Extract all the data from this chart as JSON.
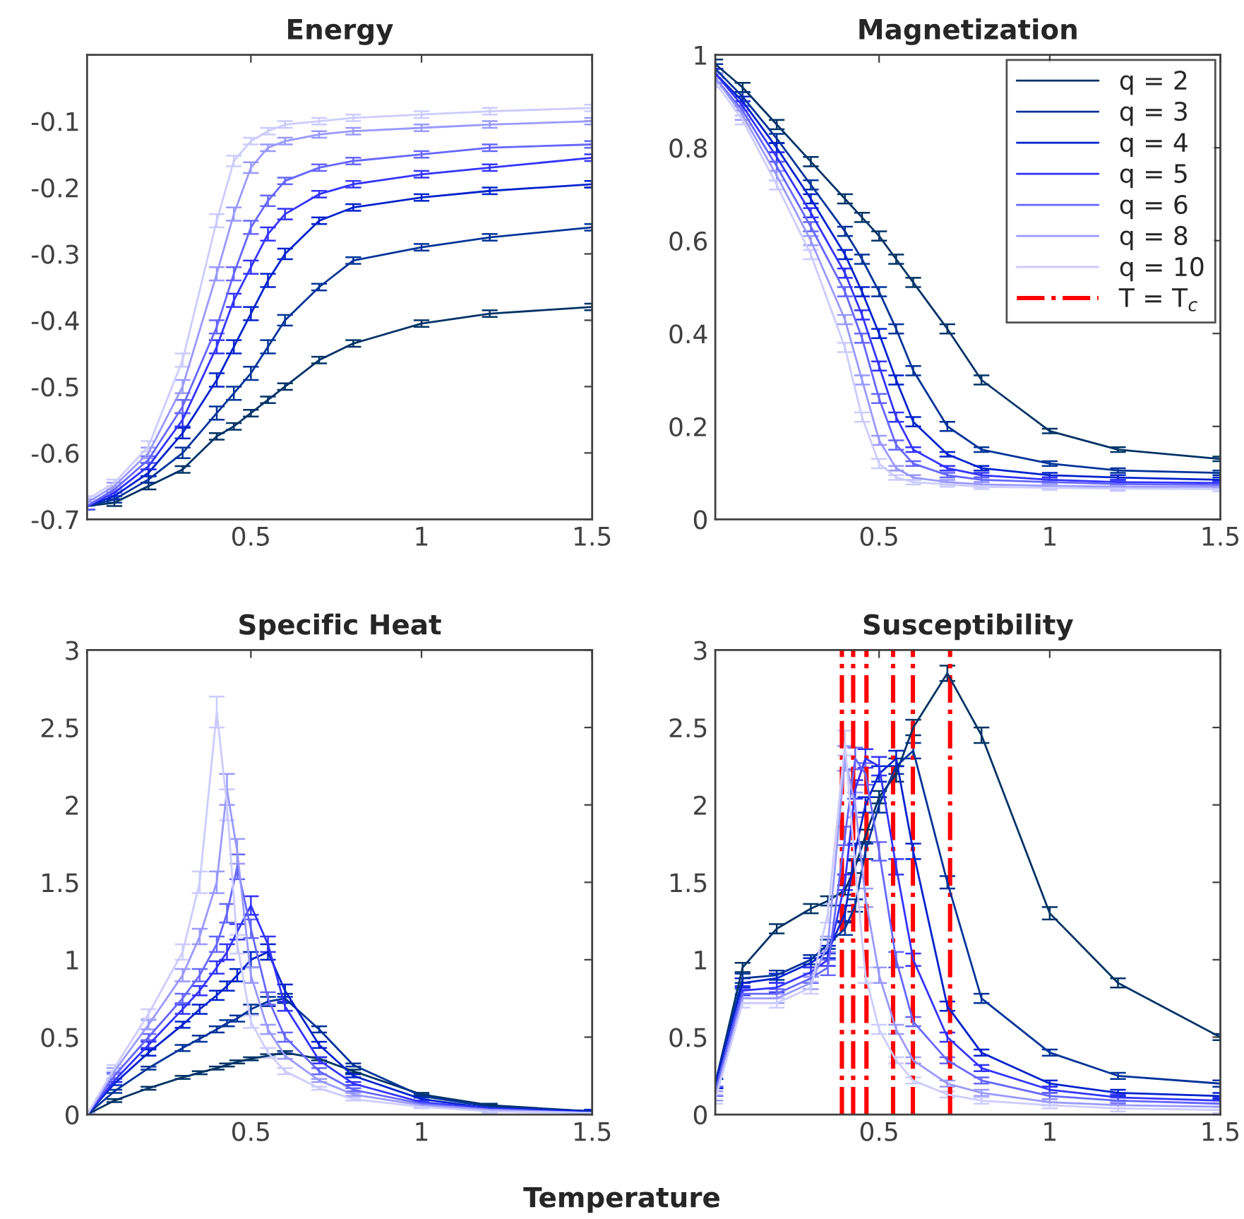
{
  "chart_data": [
    {
      "type": "line",
      "title": "Energy",
      "x": [
        0.02,
        0.1,
        0.2,
        0.3,
        0.4,
        0.45,
        0.5,
        0.55,
        0.6,
        0.7,
        0.8,
        1.0,
        1.2,
        1.5
      ],
      "xlim": [
        0.02,
        1.5
      ],
      "xticks": [
        0.5,
        1,
        1.5
      ],
      "ylim": [
        -0.7,
        0
      ],
      "yticks": [
        -0.7,
        -0.6,
        -0.5,
        -0.4,
        -0.3,
        -0.2,
        -0.1
      ],
      "grid": false,
      "marker": "none",
      "line_style": "solid",
      "series": [
        {
          "color": "#003366",
          "values": [
            -0.68,
            -0.675,
            -0.65,
            -0.625,
            -0.575,
            -0.56,
            -0.54,
            -0.52,
            -0.5,
            -0.46,
            -0.435,
            -0.405,
            -0.39,
            -0.38
          ],
          "errors": [
            0.005,
            0.005,
            0.005,
            0.005,
            0.005,
            0.005,
            0.005,
            0.005,
            0.005,
            0.005,
            0.005,
            0.005,
            0.005,
            0.005
          ]
        },
        {
          "color": "#003399",
          "values": [
            -0.68,
            -0.67,
            -0.64,
            -0.6,
            -0.54,
            -0.51,
            -0.48,
            -0.44,
            -0.4,
            -0.35,
            -0.31,
            -0.29,
            -0.275,
            -0.26
          ],
          "errors": [
            0.005,
            0.005,
            0.005,
            0.008,
            0.01,
            0.01,
            0.01,
            0.01,
            0.008,
            0.005,
            0.005,
            0.005,
            0.005,
            0.005
          ]
        },
        {
          "color": "#0022cc",
          "values": [
            -0.68,
            -0.665,
            -0.63,
            -0.57,
            -0.49,
            -0.44,
            -0.39,
            -0.34,
            -0.3,
            -0.25,
            -0.23,
            -0.215,
            -0.205,
            -0.195
          ],
          "errors": [
            0.005,
            0.005,
            0.005,
            0.008,
            0.01,
            0.01,
            0.01,
            0.01,
            0.008,
            0.005,
            0.005,
            0.005,
            0.005,
            0.005
          ]
        },
        {
          "color": "#3333ff",
          "values": [
            -0.68,
            -0.66,
            -0.62,
            -0.55,
            -0.44,
            -0.37,
            -0.32,
            -0.27,
            -0.24,
            -0.21,
            -0.195,
            -0.18,
            -0.17,
            -0.155
          ],
          "errors": [
            0.005,
            0.005,
            0.005,
            0.01,
            0.01,
            0.01,
            0.01,
            0.01,
            0.008,
            0.005,
            0.005,
            0.005,
            0.005,
            0.005
          ]
        },
        {
          "color": "#6666ff",
          "values": [
            -0.68,
            -0.655,
            -0.61,
            -0.53,
            -0.41,
            -0.33,
            -0.26,
            -0.22,
            -0.19,
            -0.17,
            -0.16,
            -0.15,
            -0.14,
            -0.135
          ],
          "errors": [
            0.005,
            0.005,
            0.005,
            0.01,
            0.01,
            0.01,
            0.01,
            0.008,
            0.005,
            0.005,
            0.005,
            0.005,
            0.005,
            0.005
          ]
        },
        {
          "color": "#9999ff",
          "values": [
            -0.675,
            -0.65,
            -0.6,
            -0.5,
            -0.33,
            -0.24,
            -0.17,
            -0.14,
            -0.13,
            -0.12,
            -0.115,
            -0.11,
            -0.105,
            -0.1
          ],
          "errors": [
            0.005,
            0.005,
            0.008,
            0.01,
            0.01,
            0.01,
            0.008,
            0.005,
            0.005,
            0.005,
            0.005,
            0.005,
            0.005,
            0.005
          ]
        },
        {
          "color": "#ccccff",
          "values": [
            -0.67,
            -0.645,
            -0.59,
            -0.46,
            -0.25,
            -0.16,
            -0.13,
            -0.115,
            -0.105,
            -0.1,
            -0.095,
            -0.09,
            -0.085,
            -0.08
          ],
          "errors": [
            0.005,
            0.005,
            0.008,
            0.01,
            0.01,
            0.008,
            0.005,
            0.005,
            0.005,
            0.005,
            0.005,
            0.005,
            0.005,
            0.005
          ]
        }
      ]
    },
    {
      "type": "line",
      "title": "Magnetization",
      "x": [
        0.02,
        0.1,
        0.2,
        0.3,
        0.4,
        0.45,
        0.5,
        0.55,
        0.6,
        0.7,
        0.8,
        1.0,
        1.2,
        1.5
      ],
      "xlim": [
        0.02,
        1.5
      ],
      "xticks": [
        0.5,
        1,
        1.5
      ],
      "ylim": [
        0,
        1
      ],
      "yticks": [
        0,
        0.2,
        0.4,
        0.6,
        0.8,
        1
      ],
      "grid": false,
      "marker": "none",
      "line_style": "solid",
      "legend": "top right",
      "series": [
        {
          "name": "q = 2",
          "color": "#003366",
          "values": [
            0.98,
            0.93,
            0.85,
            0.77,
            0.69,
            0.65,
            0.61,
            0.56,
            0.51,
            0.41,
            0.3,
            0.19,
            0.15,
            0.13
          ],
          "errors": [
            0.01,
            0.01,
            0.01,
            0.01,
            0.01,
            0.01,
            0.01,
            0.01,
            0.01,
            0.01,
            0.01,
            0.005,
            0.005,
            0.005
          ]
        },
        {
          "name": "q = 3",
          "color": "#003399",
          "values": [
            0.97,
            0.91,
            0.82,
            0.72,
            0.62,
            0.56,
            0.49,
            0.41,
            0.32,
            0.2,
            0.15,
            0.12,
            0.105,
            0.1
          ],
          "errors": [
            0.01,
            0.01,
            0.01,
            0.01,
            0.01,
            0.01,
            0.01,
            0.01,
            0.01,
            0.01,
            0.005,
            0.005,
            0.005,
            0.005
          ]
        },
        {
          "name": "q = 4",
          "color": "#0022cc",
          "values": [
            0.96,
            0.9,
            0.8,
            0.69,
            0.57,
            0.49,
            0.4,
            0.3,
            0.21,
            0.14,
            0.11,
            0.095,
            0.09,
            0.085
          ],
          "errors": [
            0.01,
            0.01,
            0.01,
            0.01,
            0.01,
            0.01,
            0.01,
            0.01,
            0.01,
            0.005,
            0.005,
            0.005,
            0.005,
            0.005
          ]
        },
        {
          "name": "q = 5",
          "color": "#3333ff",
          "values": [
            0.96,
            0.89,
            0.78,
            0.66,
            0.53,
            0.44,
            0.33,
            0.22,
            0.15,
            0.11,
            0.095,
            0.085,
            0.08,
            0.078
          ],
          "errors": [
            0.01,
            0.01,
            0.01,
            0.01,
            0.01,
            0.01,
            0.01,
            0.01,
            0.005,
            0.005,
            0.005,
            0.005,
            0.005,
            0.005
          ]
        },
        {
          "name": "q = 6",
          "color": "#6666ff",
          "values": [
            0.95,
            0.88,
            0.76,
            0.63,
            0.49,
            0.39,
            0.26,
            0.16,
            0.12,
            0.095,
            0.085,
            0.08,
            0.076,
            0.074
          ],
          "errors": [
            0.01,
            0.01,
            0.01,
            0.01,
            0.01,
            0.01,
            0.01,
            0.01,
            0.005,
            0.005,
            0.005,
            0.005,
            0.005,
            0.005
          ]
        },
        {
          "name": "q = 8",
          "color": "#9999ff",
          "values": [
            0.95,
            0.87,
            0.74,
            0.6,
            0.43,
            0.3,
            0.17,
            0.11,
            0.09,
            0.08,
            0.075,
            0.072,
            0.07,
            0.07
          ],
          "errors": [
            0.01,
            0.01,
            0.01,
            0.01,
            0.01,
            0.01,
            0.01,
            0.005,
            0.005,
            0.005,
            0.005,
            0.005,
            0.005,
            0.005
          ]
        },
        {
          "name": "q = 10",
          "color": "#ccccff",
          "values": [
            0.94,
            0.86,
            0.72,
            0.57,
            0.37,
            0.22,
            0.12,
            0.09,
            0.08,
            0.075,
            0.07,
            0.068,
            0.066,
            0.065
          ],
          "errors": [
            0.01,
            0.01,
            0.01,
            0.01,
            0.01,
            0.01,
            0.01,
            0.005,
            0.005,
            0.005,
            0.005,
            0.005,
            0.005,
            0.005
          ]
        }
      ]
    },
    {
      "type": "line",
      "title": "Specific Heat",
      "xlabel": "Temperature",
      "x": [
        0.02,
        0.1,
        0.2,
        0.3,
        0.35,
        0.4,
        0.43,
        0.46,
        0.5,
        0.55,
        0.6,
        0.7,
        0.8,
        1.0,
        1.2,
        1.5
      ],
      "xlim": [
        0.02,
        1.5
      ],
      "xticks": [
        0.5,
        1,
        1.5
      ],
      "ylim": [
        0,
        3
      ],
      "yticks": [
        0,
        0.5,
        1,
        1.5,
        2,
        2.5,
        3
      ],
      "grid": false,
      "marker": "none",
      "line_style": "solid",
      "series": [
        {
          "color": "#003366",
          "values": [
            0.0,
            0.09,
            0.17,
            0.24,
            0.27,
            0.3,
            0.32,
            0.34,
            0.36,
            0.38,
            0.4,
            0.36,
            0.28,
            0.13,
            0.06,
            0.02
          ],
          "errors": [
            0.01,
            0.01,
            0.01,
            0.01,
            0.01,
            0.01,
            0.01,
            0.01,
            0.01,
            0.01,
            0.01,
            0.01,
            0.01,
            0.01,
            0.01,
            0.01
          ]
        },
        {
          "color": "#003399",
          "values": [
            0.0,
            0.15,
            0.3,
            0.43,
            0.49,
            0.55,
            0.59,
            0.62,
            0.68,
            0.73,
            0.75,
            0.55,
            0.32,
            0.12,
            0.05,
            0.02
          ],
          "errors": [
            0.01,
            0.01,
            0.01,
            0.02,
            0.02,
            0.02,
            0.02,
            0.02,
            0.03,
            0.03,
            0.03,
            0.02,
            0.01,
            0.01,
            0.01,
            0.01
          ]
        },
        {
          "color": "#0022cc",
          "values": [
            0.0,
            0.2,
            0.4,
            0.58,
            0.68,
            0.77,
            0.83,
            0.9,
            1.0,
            1.05,
            0.8,
            0.45,
            0.25,
            0.1,
            0.04,
            0.02
          ],
          "errors": [
            0.01,
            0.01,
            0.02,
            0.02,
            0.03,
            0.03,
            0.03,
            0.04,
            0.05,
            0.05,
            0.04,
            0.02,
            0.01,
            0.01,
            0.01,
            0.01
          ]
        },
        {
          "color": "#3333ff",
          "values": [
            0.0,
            0.22,
            0.45,
            0.68,
            0.8,
            0.95,
            1.05,
            1.18,
            1.35,
            1.1,
            0.7,
            0.35,
            0.2,
            0.08,
            0.04,
            0.01
          ],
          "errors": [
            0.01,
            0.01,
            0.02,
            0.03,
            0.03,
            0.04,
            0.05,
            0.05,
            0.06,
            0.05,
            0.03,
            0.02,
            0.01,
            0.01,
            0.01,
            0.01
          ]
        },
        {
          "color": "#6666ff",
          "values": [
            0.0,
            0.25,
            0.5,
            0.75,
            0.9,
            1.1,
            1.3,
            1.6,
            1.2,
            0.75,
            0.5,
            0.28,
            0.16,
            0.07,
            0.03,
            0.01
          ],
          "errors": [
            0.01,
            0.02,
            0.02,
            0.03,
            0.04,
            0.05,
            0.06,
            0.08,
            0.06,
            0.04,
            0.03,
            0.02,
            0.01,
            0.01,
            0.01,
            0.01
          ]
        },
        {
          "color": "#9999ff",
          "values": [
            0.0,
            0.28,
            0.58,
            0.9,
            1.15,
            1.5,
            2.1,
            1.7,
            0.9,
            0.55,
            0.38,
            0.22,
            0.13,
            0.06,
            0.03,
            0.01
          ],
          "errors": [
            0.01,
            0.02,
            0.03,
            0.04,
            0.05,
            0.07,
            0.1,
            0.08,
            0.05,
            0.03,
            0.02,
            0.01,
            0.01,
            0.01,
            0.01,
            0.01
          ]
        },
        {
          "color": "#ccccff",
          "values": [
            0.0,
            0.3,
            0.65,
            1.05,
            1.5,
            2.6,
            2.0,
            1.1,
            0.6,
            0.4,
            0.28,
            0.17,
            0.1,
            0.05,
            0.02,
            0.01
          ],
          "errors": [
            0.01,
            0.02,
            0.03,
            0.05,
            0.07,
            0.1,
            0.1,
            0.06,
            0.04,
            0.03,
            0.02,
            0.01,
            0.01,
            0.01,
            0.01,
            0.005
          ]
        }
      ]
    },
    {
      "type": "line",
      "title": "Susceptibility",
      "x": [
        0.02,
        0.1,
        0.2,
        0.3,
        0.35,
        0.4,
        0.43,
        0.46,
        0.5,
        0.55,
        0.6,
        0.7,
        0.8,
        1.0,
        1.2,
        1.5
      ],
      "xlim": [
        0.02,
        1.5
      ],
      "xticks": [
        0.5,
        1,
        1.5
      ],
      "ylim": [
        0,
        3
      ],
      "yticks": [
        0,
        0.5,
        1,
        1.5,
        2,
        2.5,
        3
      ],
      "grid": false,
      "marker": "none",
      "line_style": "solid",
      "ref_lines": [
        {
          "axis": "x",
          "value": 0.391,
          "label": "T = T$_{c}$",
          "color": "#ff0000",
          "line_style": "dashdot"
        },
        {
          "axis": "x",
          "value": 0.424,
          "color": "#ff0000",
          "line_style": "dashdot"
        },
        {
          "axis": "x",
          "value": 0.463,
          "color": "#ff0000",
          "line_style": "dashdot"
        },
        {
          "axis": "x",
          "value": 0.541,
          "color": "#ff0000",
          "line_style": "dashdot"
        },
        {
          "axis": "x",
          "value": 0.599,
          "color": "#ff0000",
          "line_style": "dashdot"
        },
        {
          "axis": "x",
          "value": 0.708,
          "color": "#ff0000",
          "line_style": "dashdot"
        }
      ],
      "series": [
        {
          "color": "#003366",
          "values": [
            0.2,
            0.95,
            1.2,
            1.33,
            1.38,
            1.45,
            1.6,
            1.8,
            2.05,
            2.2,
            2.5,
            2.85,
            2.45,
            1.3,
            0.85,
            0.5
          ],
          "errors": [
            0.03,
            0.03,
            0.03,
            0.03,
            0.03,
            0.03,
            0.04,
            0.04,
            0.04,
            0.05,
            0.05,
            0.05,
            0.05,
            0.04,
            0.03,
            0.02
          ]
        },
        {
          "color": "#003399",
          "values": [
            0.2,
            0.88,
            0.9,
            1.0,
            1.1,
            1.2,
            1.35,
            1.7,
            2.0,
            2.25,
            2.35,
            1.5,
            0.75,
            0.4,
            0.25,
            0.2
          ],
          "errors": [
            0.03,
            0.03,
            0.03,
            0.03,
            0.03,
            0.04,
            0.04,
            0.05,
            0.05,
            0.05,
            0.05,
            0.04,
            0.03,
            0.02,
            0.02,
            0.02
          ]
        },
        {
          "color": "#0022cc",
          "values": [
            0.2,
            0.85,
            0.88,
            0.98,
            1.05,
            1.3,
            1.7,
            2.0,
            2.2,
            2.3,
            1.7,
            0.7,
            0.4,
            0.2,
            0.14,
            0.12
          ],
          "errors": [
            0.03,
            0.03,
            0.03,
            0.03,
            0.04,
            0.05,
            0.05,
            0.05,
            0.05,
            0.05,
            0.05,
            0.03,
            0.02,
            0.02,
            0.02,
            0.02
          ]
        },
        {
          "color": "#3333ff",
          "values": [
            0.15,
            0.8,
            0.82,
            0.92,
            1.0,
            1.5,
            2.1,
            2.3,
            2.25,
            1.6,
            1.0,
            0.5,
            0.3,
            0.16,
            0.11,
            0.09
          ],
          "errors": [
            0.03,
            0.03,
            0.03,
            0.03,
            0.04,
            0.05,
            0.06,
            0.06,
            0.06,
            0.05,
            0.04,
            0.03,
            0.02,
            0.02,
            0.02,
            0.02
          ]
        },
        {
          "color": "#6666ff",
          "values": [
            0.15,
            0.78,
            0.78,
            0.88,
            0.95,
            1.8,
            2.3,
            2.2,
            1.7,
            1.0,
            0.6,
            0.35,
            0.22,
            0.12,
            0.09,
            0.07
          ],
          "errors": [
            0.03,
            0.03,
            0.03,
            0.03,
            0.05,
            0.06,
            0.07,
            0.07,
            0.06,
            0.05,
            0.03,
            0.02,
            0.02,
            0.02,
            0.02,
            0.02
          ]
        },
        {
          "color": "#9999ff",
          "values": [
            0.12,
            0.75,
            0.75,
            0.85,
            1.1,
            2.3,
            2.0,
            1.4,
            0.9,
            0.55,
            0.35,
            0.2,
            0.14,
            0.08,
            0.06,
            0.05
          ],
          "errors": [
            0.03,
            0.03,
            0.03,
            0.04,
            0.05,
            0.08,
            0.08,
            0.06,
            0.05,
            0.03,
            0.02,
            0.02,
            0.02,
            0.02,
            0.02,
            0.02
          ]
        },
        {
          "color": "#ccccff",
          "values": [
            0.1,
            0.72,
            0.72,
            0.82,
            1.3,
            2.4,
            1.6,
            0.9,
            0.55,
            0.35,
            0.22,
            0.13,
            0.09,
            0.06,
            0.04,
            0.03
          ],
          "errors": [
            0.03,
            0.03,
            0.03,
            0.04,
            0.06,
            0.08,
            0.07,
            0.05,
            0.03,
            0.02,
            0.02,
            0.02,
            0.02,
            0.02,
            0.02,
            0.02
          ]
        }
      ]
    }
  ]
}
